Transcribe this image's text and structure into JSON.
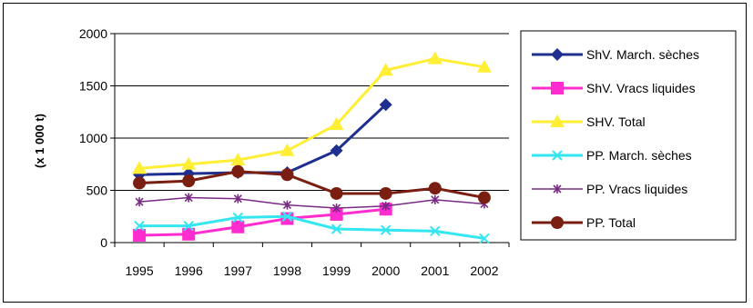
{
  "chart_data": {
    "type": "line",
    "title": "",
    "xlabel": "",
    "ylabel": "(x 1 000 t)",
    "ylim": [
      0,
      2000
    ],
    "yticks": [
      0,
      500,
      1000,
      1500,
      2000
    ],
    "grid": true,
    "legend_position": "right",
    "categories": [
      "1995",
      "1996",
      "1997",
      "1998",
      "1999",
      "2000",
      "2001",
      "2002"
    ],
    "series": [
      {
        "name": "ShV. March. sèches",
        "color": "#1f2f8f",
        "marker": "diamond",
        "values": [
          650,
          660,
          670,
          670,
          880,
          1320,
          null,
          null
        ]
      },
      {
        "name": "ShV. Vracs liquides",
        "color": "#ff2ccf",
        "marker": "square",
        "values": [
          70,
          80,
          150,
          230,
          270,
          320,
          null,
          null
        ]
      },
      {
        "name": "SHV. Total",
        "color": "#ffee33",
        "marker": "triangle",
        "values": [
          710,
          750,
          790,
          880,
          1130,
          1650,
          1760,
          1680
        ]
      },
      {
        "name": "PP. March. sèches",
        "color": "#33e6f0",
        "marker": "x",
        "values": [
          160,
          160,
          240,
          250,
          130,
          120,
          110,
          40
        ]
      },
      {
        "name": "PP. Vracs liquides",
        "color": "#7a2a86",
        "marker": "star",
        "values": [
          390,
          430,
          420,
          360,
          330,
          350,
          410,
          370
        ]
      },
      {
        "name": "PP. Total",
        "color": "#7a1e12",
        "marker": "circle",
        "values": [
          570,
          590,
          680,
          650,
          470,
          470,
          520,
          430
        ]
      }
    ]
  }
}
